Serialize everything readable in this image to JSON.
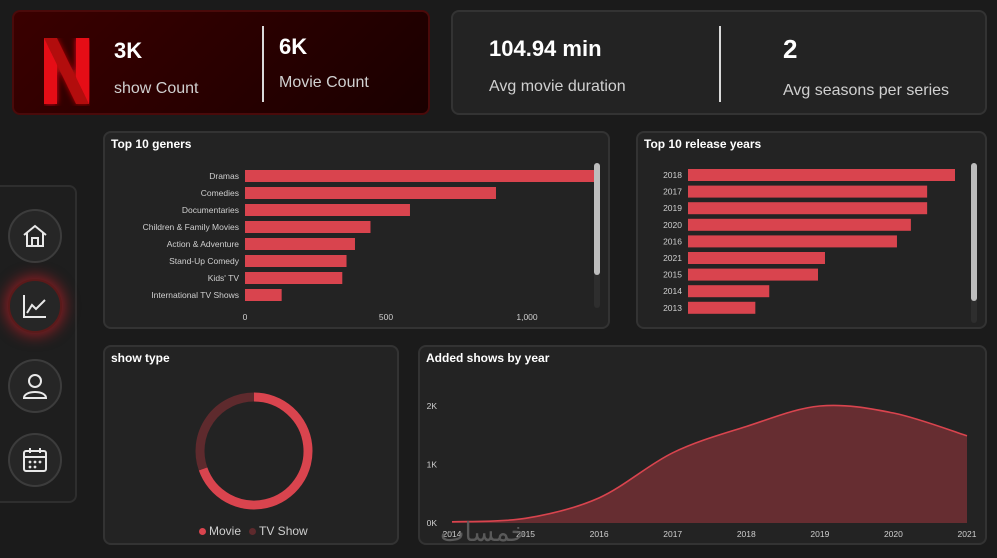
{
  "kpis": {
    "show_count": {
      "value": "3K",
      "label": "show Count"
    },
    "movie_count": {
      "value": "6K",
      "label": "Movie Count"
    },
    "avg_duration": {
      "value": "104.94 min",
      "label": "Avg movie duration"
    },
    "avg_seasons": {
      "value": "2",
      "label": "Avg seasons per series"
    }
  },
  "nav": {
    "items": [
      {
        "name": "home",
        "icon": "home-icon"
      },
      {
        "name": "analytics",
        "icon": "line-chart-icon",
        "active": true
      },
      {
        "name": "profile",
        "icon": "user-icon"
      },
      {
        "name": "calendar",
        "icon": "calendar-icon"
      }
    ]
  },
  "colors": {
    "accent": "#d9444e",
    "tvshow": "#5e2a2d",
    "area_fill": "#6e2f33"
  },
  "watermark": "خمسات",
  "chart_data": [
    {
      "type": "bar",
      "orientation": "horizontal",
      "title": "Top 10 geners",
      "categories": [
        "Dramas",
        "Comedies",
        "Documentaries",
        "Children & Family Movies",
        "Action & Adventure",
        "Stand-Up Comedy",
        "Kids' TV",
        "International TV Shows"
      ],
      "values": [
        1250,
        890,
        585,
        445,
        390,
        360,
        345,
        130
      ],
      "xlim": [
        0,
        1300
      ],
      "xticks": [
        "0",
        "500",
        "1,000"
      ]
    },
    {
      "type": "bar",
      "orientation": "horizontal",
      "title": "Top 10 release years",
      "categories": [
        "2018",
        "2017",
        "2019",
        "2020",
        "2016",
        "2021",
        "2015",
        "2014",
        "2013"
      ],
      "values": [
        1150,
        1030,
        1030,
        960,
        900,
        590,
        560,
        350,
        290
      ],
      "xlim": [
        0,
        1200
      ]
    },
    {
      "type": "pie",
      "donut": true,
      "title": "show type",
      "labels": [
        "Movie",
        "TV Show"
      ],
      "values": [
        6131,
        2676
      ]
    },
    {
      "type": "area",
      "title": "Added shows by year",
      "x": [
        2014,
        2015,
        2016,
        2017,
        2018,
        2019,
        2020,
        2021
      ],
      "xlabels": [
        "2014",
        "2015",
        "2016",
        "2017",
        "2018",
        "2019",
        "2020",
        "2021"
      ],
      "values": [
        20,
        80,
        430,
        1200,
        1650,
        2000,
        1880,
        1490
      ],
      "ylim": [
        0,
        2000
      ],
      "yticks": [
        {
          "v": 0,
          "label": "0K"
        },
        {
          "v": 1000,
          "label": "1K"
        },
        {
          "v": 2000,
          "label": "2K"
        }
      ]
    }
  ]
}
